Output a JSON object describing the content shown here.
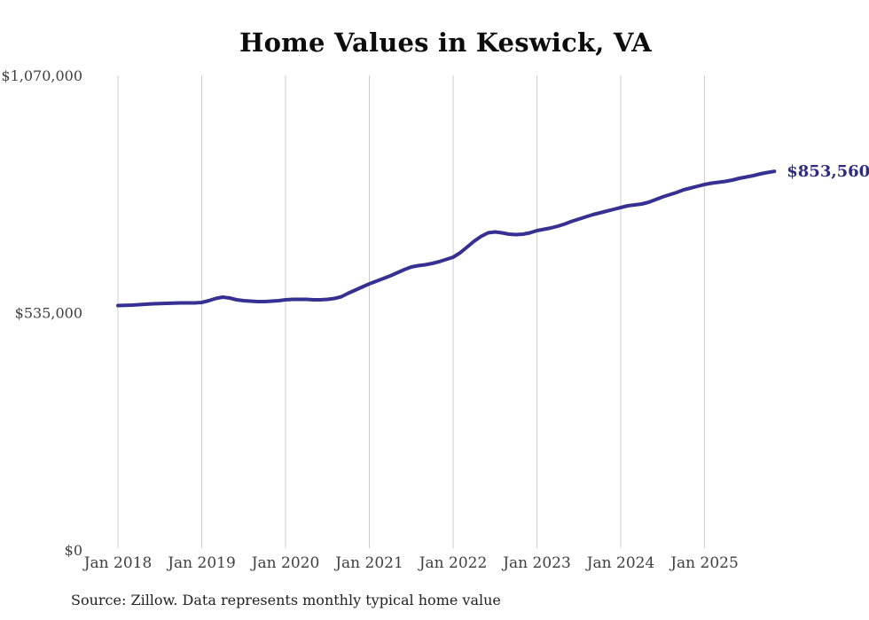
{
  "page": {
    "title": "Home Values in Keswick, VA",
    "source_note": "Source: Zillow. Data represents monthly typical home value"
  },
  "chart_data": {
    "type": "line",
    "title": "Home Values in Keswick, VA",
    "series_name": "Monthly typical home value",
    "unit": "USD",
    "x_frequency": "monthly",
    "x_start": "Jan 2018",
    "x_end": "Nov 2025",
    "x_tick_labels": [
      "Jan 2018",
      "Jan 2019",
      "Jan 2020",
      "Jan 2021",
      "Jan 2022",
      "Jan 2023",
      "Jan 2024",
      "Jan 2025"
    ],
    "y_ticks": [
      {
        "value": 0,
        "label": "$0"
      },
      {
        "value": 535000,
        "label": "$535,000"
      },
      {
        "value": 1070000,
        "label": "$1,070,000"
      }
    ],
    "ylim": [
      0,
      1070000
    ],
    "grid": "vertical-only",
    "legend": "none",
    "latest_value": 853560,
    "latest_value_label": "$853,560",
    "values": [
      551000,
      551500,
      552000,
      553000,
      554000,
      555000,
      555500,
      556000,
      556500,
      557000,
      557000,
      557000,
      558000,
      562000,
      567000,
      570000,
      568000,
      564000,
      562000,
      561000,
      560000,
      560000,
      561000,
      562000,
      564000,
      565000,
      565000,
      565000,
      564000,
      564000,
      565000,
      567000,
      571000,
      579000,
      586000,
      593000,
      600000,
      606000,
      612000,
      618000,
      625000,
      632000,
      638000,
      641000,
      643000,
      646000,
      650000,
      655000,
      660000,
      670000,
      683000,
      696000,
      707000,
      715000,
      717000,
      715000,
      712000,
      711000,
      712000,
      715000,
      720000,
      723000,
      726000,
      730000,
      735000,
      741000,
      746000,
      751000,
      756000,
      760000,
      764000,
      768000,
      772000,
      776000,
      778000,
      780000,
      784000,
      790000,
      796000,
      801000,
      806000,
      812000,
      816000,
      820000,
      824000,
      827000,
      829000,
      831000,
      834000,
      838000,
      841000,
      844000,
      848000,
      851000,
      853560
    ],
    "colors": {
      "line": "#363093",
      "latest_label": "#2e2b82",
      "gridline": "#cccccc",
      "axis_text": "#3f3f3f",
      "title": "#0d0d0d",
      "source_text": "#222222",
      "background": "#ffffff"
    }
  }
}
